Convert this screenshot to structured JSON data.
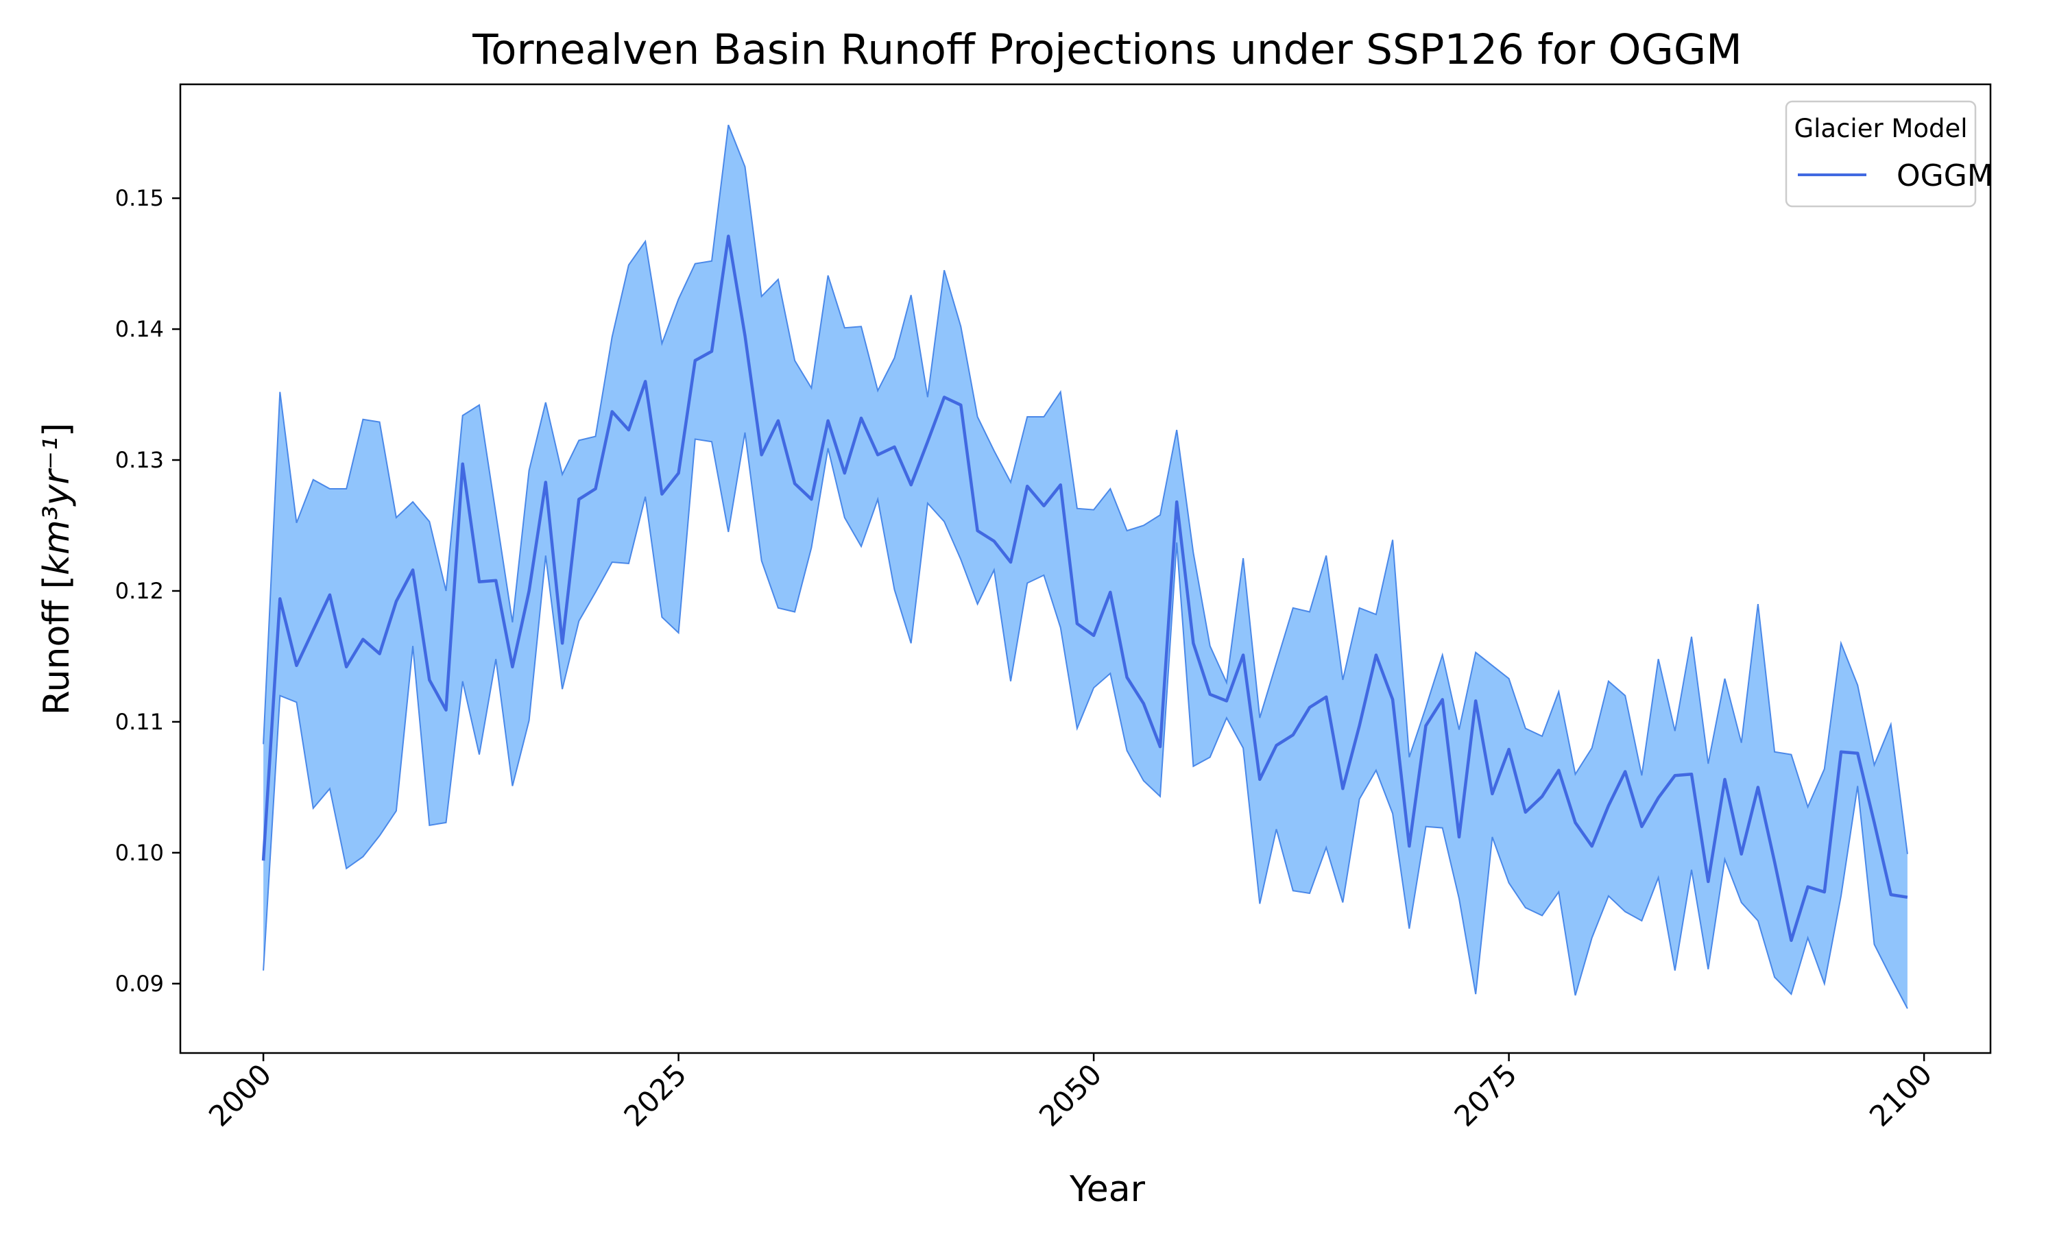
{
  "chart_data": {
    "type": "line",
    "title": "Tornealven Basin Runoff Projections under SSP126 for OGGM",
    "xlabel": "Year",
    "ylabel_prefix": "Runoff [",
    "ylabel_units": "km³yr⁻¹",
    "ylabel_suffix": "]",
    "xlim": [
      1995,
      2104
    ],
    "ylim": [
      0.0847,
      0.1587
    ],
    "x_ticks": [
      2000,
      2025,
      2050,
      2075,
      2100
    ],
    "x_tick_labels": [
      "2000",
      "2025",
      "2050",
      "2075",
      "2100"
    ],
    "y_ticks": [
      0.09,
      0.1,
      0.11,
      0.12,
      0.13,
      0.14,
      0.15
    ],
    "y_tick_labels": [
      "0.09",
      "0.10",
      "0.11",
      "0.12",
      "0.13",
      "0.14",
      "0.15"
    ],
    "grid": false,
    "legend": {
      "title": "Glacier Model",
      "position": "top-right"
    },
    "x_start": 2000,
    "series": [
      {
        "name": "OGGM",
        "color": "#4169e1",
        "band_fill": "#90c4fc",
        "band_edge": "#4a88e8",
        "mean": [
          0.0994,
          0.1194,
          0.1143,
          0.117,
          0.1197,
          0.1142,
          0.1163,
          0.1152,
          0.1192,
          0.1216,
          0.1132,
          0.1109,
          0.1297,
          0.1207,
          0.1208,
          0.1142,
          0.12,
          0.1283,
          0.116,
          0.127,
          0.1278,
          0.1337,
          0.1323,
          0.136,
          0.1274,
          0.129,
          0.1376,
          0.1383,
          0.1471,
          0.1395,
          0.1304,
          0.133,
          0.1282,
          0.127,
          0.133,
          0.129,
          0.1332,
          0.1304,
          0.131,
          0.1281,
          0.1314,
          0.1348,
          0.1342,
          0.1246,
          0.1238,
          0.1222,
          0.128,
          0.1265,
          0.1281,
          0.1175,
          0.1166,
          0.1199,
          0.1134,
          0.1114,
          0.1081,
          0.1268,
          0.116,
          0.1121,
          0.1116,
          0.1151,
          0.1056,
          0.1082,
          0.109,
          0.1111,
          0.1119,
          0.1049,
          0.1097,
          0.1151,
          0.1117,
          0.1005,
          0.1097,
          0.1117,
          0.1012,
          0.1116,
          0.1045,
          0.1079,
          0.1031,
          0.1043,
          0.1063,
          0.1023,
          0.1005,
          0.1036,
          0.1062,
          0.102,
          0.1042,
          0.1059,
          0.106,
          0.0978,
          0.1056,
          0.0999,
          0.105,
          0.0993,
          0.0933,
          0.0974,
          0.097,
          0.1077,
          0.1076,
          0.1023,
          0.0968,
          0.0966
        ],
        "upper": [
          0.1083,
          0.1352,
          0.1252,
          0.1285,
          0.1278,
          0.1278,
          0.1331,
          0.1329,
          0.1256,
          0.1268,
          0.1253,
          0.12,
          0.1334,
          0.1342,
          0.1259,
          0.1176,
          0.1292,
          0.1344,
          0.1289,
          0.1315,
          0.1318,
          0.1394,
          0.1449,
          0.1467,
          0.1389,
          0.1423,
          0.145,
          0.1452,
          0.1556,
          0.1524,
          0.1425,
          0.1438,
          0.1376,
          0.1355,
          0.1441,
          0.1401,
          0.1402,
          0.1353,
          0.1378,
          0.1426,
          0.1348,
          0.1445,
          0.1402,
          0.1333,
          0.1307,
          0.1283,
          0.1333,
          0.1333,
          0.1352,
          0.1263,
          0.1262,
          0.1278,
          0.1246,
          0.125,
          0.1258,
          0.1323,
          0.1229,
          0.1158,
          0.113,
          0.1225,
          0.1103,
          0.1145,
          0.1187,
          0.1184,
          0.1227,
          0.1132,
          0.1187,
          0.1182,
          0.1239,
          0.1073,
          0.1111,
          0.1151,
          0.1094,
          0.1153,
          0.1143,
          0.1133,
          0.1095,
          0.1089,
          0.1123,
          0.106,
          0.108,
          0.1131,
          0.112,
          0.1059,
          0.1148,
          0.1093,
          0.1165,
          0.1068,
          0.1133,
          0.1084,
          0.119,
          0.1077,
          0.1075,
          0.1035,
          0.1064,
          0.116,
          0.1128,
          0.1067,
          0.1098,
          0.0999
        ],
        "lower": [
          0.091,
          0.112,
          0.1115,
          0.1034,
          0.1049,
          0.0988,
          0.0997,
          0.1013,
          0.1032,
          0.1158,
          0.1021,
          0.1023,
          0.1131,
          0.1075,
          0.1148,
          0.1051,
          0.1101,
          0.1227,
          0.1125,
          0.1177,
          0.1199,
          0.1222,
          0.1221,
          0.1272,
          0.118,
          0.1168,
          0.1316,
          0.1314,
          0.1245,
          0.1321,
          0.1223,
          0.1187,
          0.1184,
          0.1233,
          0.1309,
          0.1256,
          0.1234,
          0.127,
          0.1201,
          0.116,
          0.1267,
          0.1253,
          0.1224,
          0.119,
          0.1216,
          0.1131,
          0.1206,
          0.1212,
          0.1172,
          0.1095,
          0.1126,
          0.1137,
          0.1078,
          0.1055,
          0.1043,
          0.1237,
          0.1066,
          0.1073,
          0.1103,
          0.108,
          0.0961,
          0.1018,
          0.0971,
          0.0969,
          0.1004,
          0.0962,
          0.1041,
          0.1063,
          0.103,
          0.0942,
          0.102,
          0.1019,
          0.0965,
          0.0892,
          0.1012,
          0.0977,
          0.0958,
          0.0952,
          0.097,
          0.0891,
          0.0935,
          0.0967,
          0.0955,
          0.0948,
          0.0981,
          0.091,
          0.0987,
          0.0911,
          0.0995,
          0.0962,
          0.0948,
          0.0905,
          0.0892,
          0.0935,
          0.09,
          0.0967,
          0.1051,
          0.093,
          0.0905,
          0.0881
        ]
      }
    ]
  }
}
